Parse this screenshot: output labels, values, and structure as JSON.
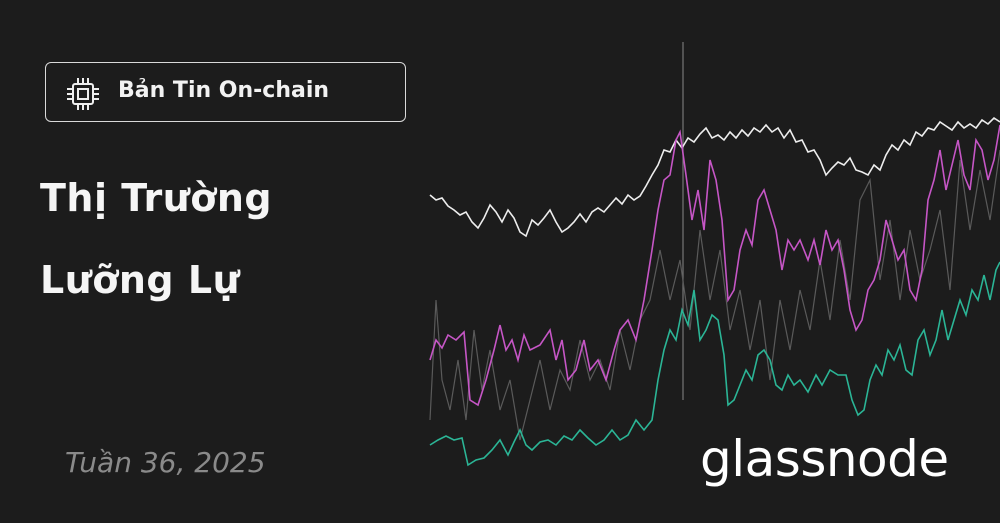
{
  "badge": {
    "label": "Bản Tin On-chain"
  },
  "title": {
    "line1": "Thị Trường",
    "line2": "Lưỡng Lự"
  },
  "date": "Tuần 36, 2025",
  "logo": "glassnode"
}
